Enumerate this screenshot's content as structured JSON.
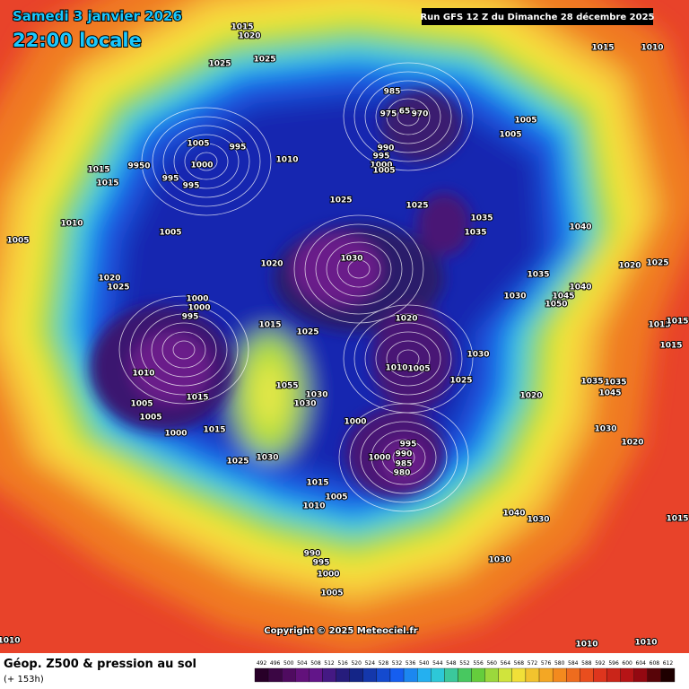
{
  "header": {
    "date": "Samedi 3 janvier 2026",
    "time": "22:00 locale",
    "run": "Run GFS 12 Z du Dimanche 28 décembre 2025"
  },
  "footer": {
    "title": "Géop. Z500 & pression au sol",
    "step": "(+ 153h)",
    "copyright": "Copyright © 2025 Meteociel.fr"
  },
  "colorbar": {
    "ticks": [
      492,
      496,
      500,
      504,
      508,
      512,
      516,
      520,
      524,
      528,
      532,
      536,
      540,
      544,
      548,
      552,
      556,
      560,
      564,
      568,
      572,
      576,
      580,
      584,
      588,
      592,
      596,
      600,
      604,
      608,
      612
    ]
  },
  "map": {
    "isobar_labels": [
      "1015",
      "1020",
      "1025",
      "1025",
      "1015",
      "1010",
      "985",
      "975",
      "65",
      "970",
      "1005",
      "1005",
      "1005",
      "995",
      "1010",
      "990",
      "995",
      "1000",
      "1005",
      "9950",
      "1000",
      "1015",
      "1015",
      "995",
      "995",
      "1025",
      "1025",
      "1035",
      "1035",
      "1040",
      "1010",
      "1005",
      "1005",
      "1030",
      "1020",
      "1035",
      "1020",
      "1025",
      "1020",
      "1025",
      "1030",
      "1040",
      "1045",
      "1050",
      "1000",
      "1000",
      "995",
      "1020",
      "1015",
      "1025",
      "1015",
      "1015",
      "1015",
      "1030",
      "1010",
      "1005",
      "1010",
      "1025",
      "1035",
      "1035",
      "1055",
      "1030",
      "1015",
      "1045",
      "1020",
      "1030",
      "1005",
      "1005",
      "1000",
      "1015",
      "1000",
      "1030",
      "995",
      "1000",
      "990",
      "985",
      "980",
      "1020",
      "1025",
      "1030",
      "1015",
      "1005",
      "1010",
      "1040",
      "1030",
      "1015",
      "990",
      "995",
      "1000",
      "1030",
      "1005",
      "1010",
      "1010",
      "1010"
    ]
  }
}
